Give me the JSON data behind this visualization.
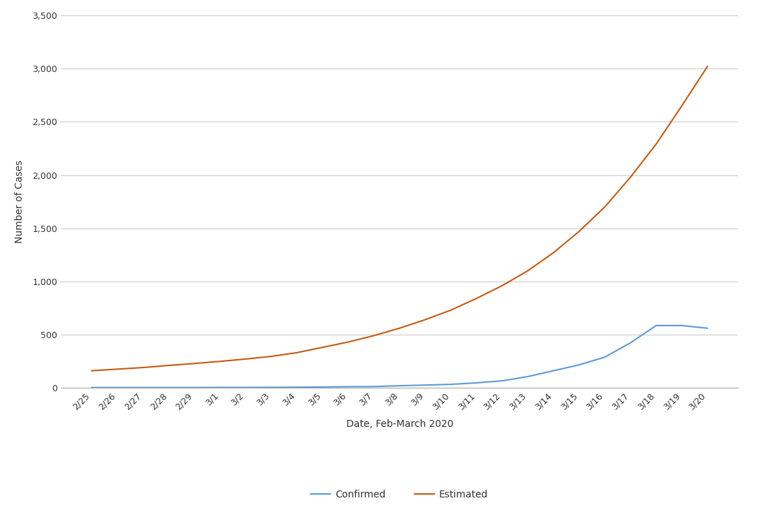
{
  "dates": [
    "2/25",
    "2/26",
    "2/27",
    "2/28",
    "2/29",
    "3/1",
    "3/2",
    "3/3",
    "3/4",
    "3/5",
    "3/6",
    "3/7",
    "3/8",
    "3/9",
    "3/10",
    "3/11",
    "3/12",
    "3/13",
    "3/14",
    "3/15",
    "3/16",
    "3/17",
    "3/18",
    "3/19",
    "3/20"
  ],
  "confirmed": [
    2,
    2,
    2,
    2,
    2,
    3,
    3,
    4,
    5,
    7,
    10,
    11,
    19,
    25,
    32,
    46,
    65,
    105,
    160,
    215,
    288,
    422,
    585,
    585,
    560
  ],
  "estimated": [
    160,
    175,
    190,
    210,
    228,
    248,
    270,
    295,
    330,
    380,
    430,
    490,
    560,
    640,
    730,
    840,
    960,
    1100,
    1270,
    1470,
    1700,
    1980,
    2290,
    2650,
    3020
  ],
  "confirmed_color": "#5B9BD5",
  "estimated_color": "#C55A11",
  "xlabel": "Date, Feb-March 2020",
  "ylabel": "Number of Cases",
  "ylim": [
    0,
    3500
  ],
  "yticks": [
    0,
    500,
    1000,
    1500,
    2000,
    2500,
    3000,
    3500
  ],
  "grid_color": "#CCCCCC",
  "background_color": "#FFFFFF",
  "legend_confirmed": "Confirmed",
  "legend_estimated": "Estimated",
  "line_width": 1.5,
  "xlabel_fontsize": 10,
  "ylabel_fontsize": 10,
  "tick_fontsize": 9,
  "legend_fontsize": 10
}
